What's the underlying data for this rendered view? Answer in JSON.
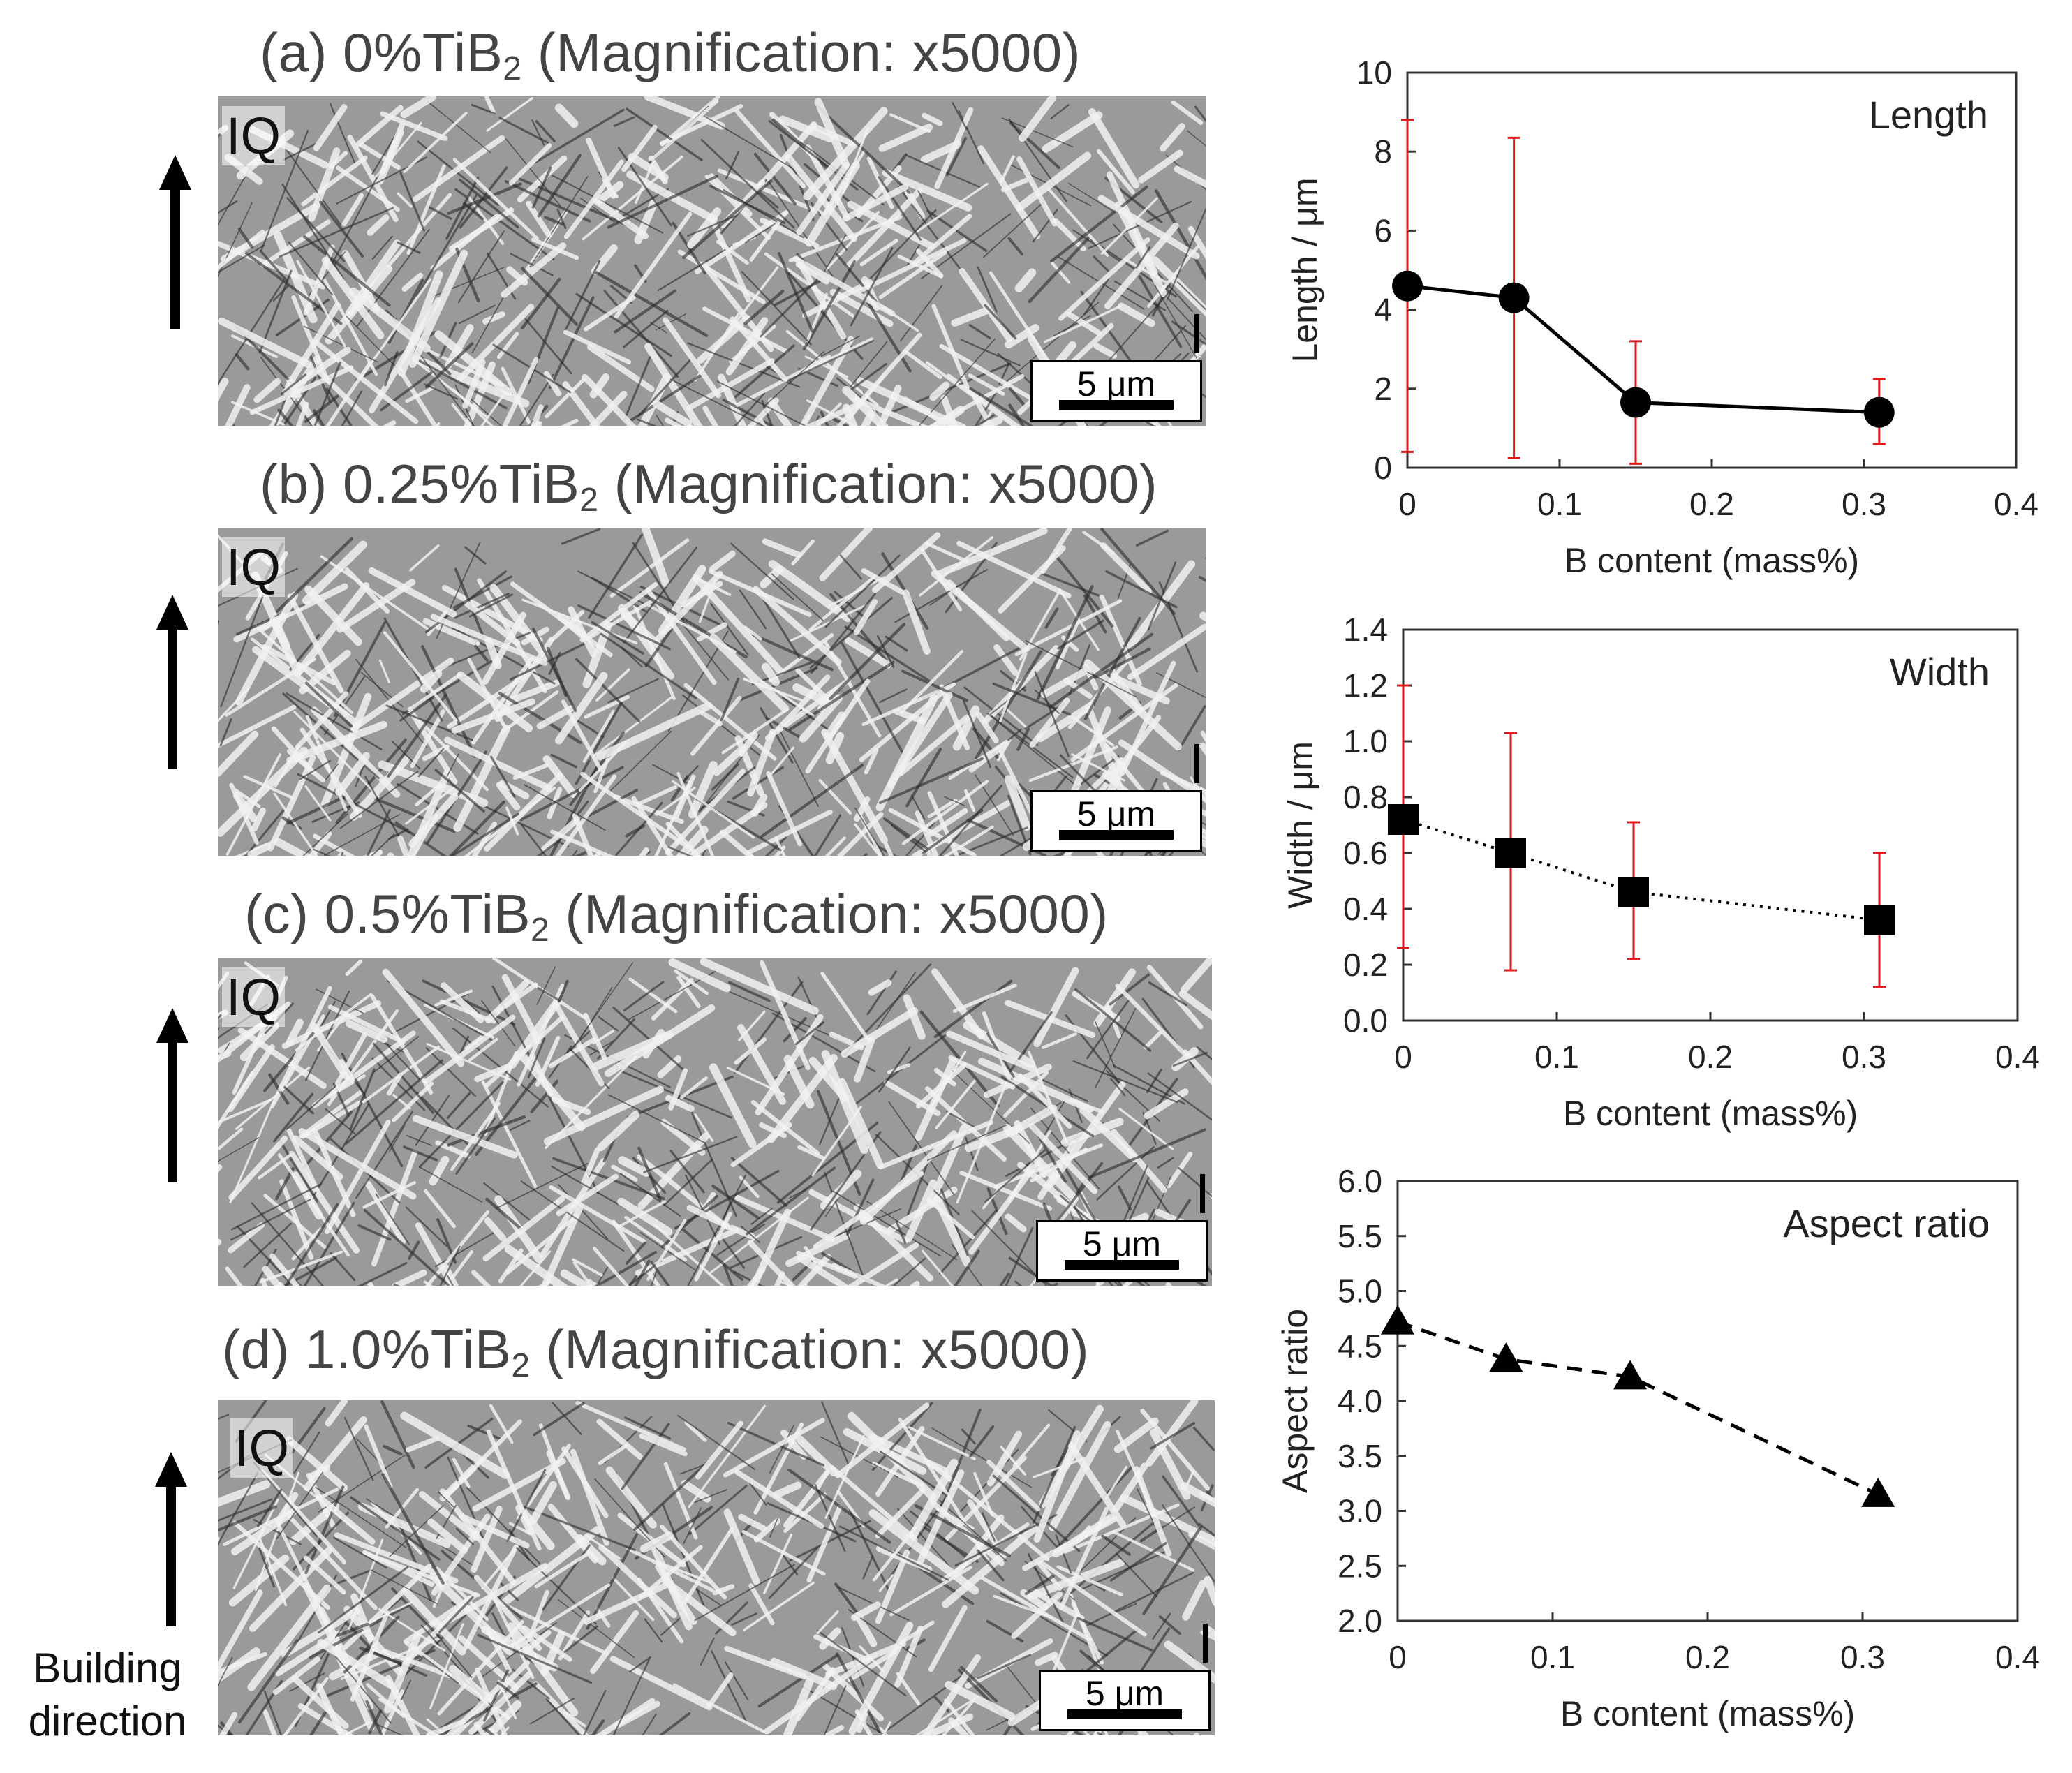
{
  "micrographs": [
    {
      "title_prefix": "(a) 0%TiB",
      "title_sub": "2",
      "title_suffix": " (Magnification: x5000)",
      "iq": "IQ",
      "scale": "5 μm"
    },
    {
      "title_prefix": "(b) 0.25%TiB",
      "title_sub": "2",
      "title_suffix": " (Magnification: x5000)",
      "iq": "IQ",
      "scale": "5 μm"
    },
    {
      "title_prefix": "(c) 0.5%TiB",
      "title_sub": "2",
      "title_suffix": " (Magnification: x5000)",
      "iq": "IQ",
      "scale": "5 μm"
    },
    {
      "title_prefix": "(d) 1.0%TiB",
      "title_sub": "2",
      "title_suffix": " (Magnification: x5000)",
      "iq": "IQ",
      "scale": "5 μm"
    }
  ],
  "building_direction": {
    "line1": "Building",
    "line2": "direction"
  },
  "colors": {
    "errorbar": "#e0191b",
    "marker": "#000000",
    "axis": "#333333"
  },
  "chart_data": [
    {
      "type": "line",
      "title": "Length",
      "xlabel": "B content (mass%)",
      "ylabel": "Length / μm",
      "xlim": [
        0,
        0.4
      ],
      "ylim": [
        0,
        10
      ],
      "xticks": [
        0,
        0.1,
        0.2,
        0.3,
        0.4
      ],
      "xtick_labels": [
        "0",
        "0.1",
        "0.2",
        "0.3",
        "0.4"
      ],
      "yticks": [
        0,
        2,
        4,
        6,
        8,
        10
      ],
      "ytick_labels": [
        "0",
        "2",
        "4",
        "6",
        "8",
        "10"
      ],
      "marker": "circle",
      "line_style": "solid",
      "legend_position": "top-right",
      "series": [
        {
          "x": [
            0,
            0.07,
            0.15,
            0.31
          ],
          "y": [
            4.6,
            4.3,
            1.65,
            1.4
          ],
          "err_low": [
            0.4,
            0.25,
            0.1,
            0.6
          ],
          "err_high": [
            8.8,
            8.35,
            3.2,
            2.25
          ]
        }
      ]
    },
    {
      "type": "line",
      "title": "Width",
      "xlabel": "B content (mass%)",
      "ylabel": "Width / μm",
      "xlim": [
        0,
        0.4
      ],
      "ylim": [
        0,
        1.4
      ],
      "xticks": [
        0,
        0.1,
        0.2,
        0.3,
        0.4
      ],
      "xtick_labels": [
        "0",
        "0.1",
        "0.2",
        "0.3",
        "0.4"
      ],
      "yticks": [
        0,
        0.2,
        0.4,
        0.6,
        0.8,
        1.0,
        1.2,
        1.4
      ],
      "ytick_labels": [
        "0.0",
        "0.2",
        "0.4",
        "0.6",
        "0.8",
        "1.0",
        "1.2",
        "1.4"
      ],
      "marker": "square",
      "line_style": "dotted",
      "legend_position": "top-right",
      "series": [
        {
          "x": [
            0,
            0.07,
            0.15,
            0.31
          ],
          "y": [
            0.72,
            0.6,
            0.46,
            0.36
          ],
          "err_low": [
            0.26,
            0.18,
            0.22,
            0.12
          ],
          "err_high": [
            1.2,
            1.03,
            0.71,
            0.6
          ]
        }
      ]
    },
    {
      "type": "line",
      "title": "Aspect ratio",
      "xlabel": "B content (mass%)",
      "ylabel": "Aspect ratio",
      "xlim": [
        0,
        0.4
      ],
      "ylim": [
        2.0,
        6.0
      ],
      "xticks": [
        0,
        0.1,
        0.2,
        0.3,
        0.4
      ],
      "xtick_labels": [
        "0",
        "0.1",
        "0.2",
        "0.3",
        "0.4"
      ],
      "yticks": [
        2.0,
        2.5,
        3.0,
        3.5,
        4.0,
        4.5,
        5.0,
        5.5,
        6.0
      ],
      "ytick_labels": [
        "2.0",
        "2.5",
        "3.0",
        "3.5",
        "4.0",
        "4.5",
        "5.0",
        "5.5",
        "6.0"
      ],
      "marker": "triangle",
      "line_style": "dashed",
      "legend_position": "top-right",
      "series": [
        {
          "x": [
            0,
            0.07,
            0.15,
            0.31
          ],
          "y": [
            4.72,
            4.38,
            4.22,
            3.15
          ]
        }
      ]
    }
  ]
}
